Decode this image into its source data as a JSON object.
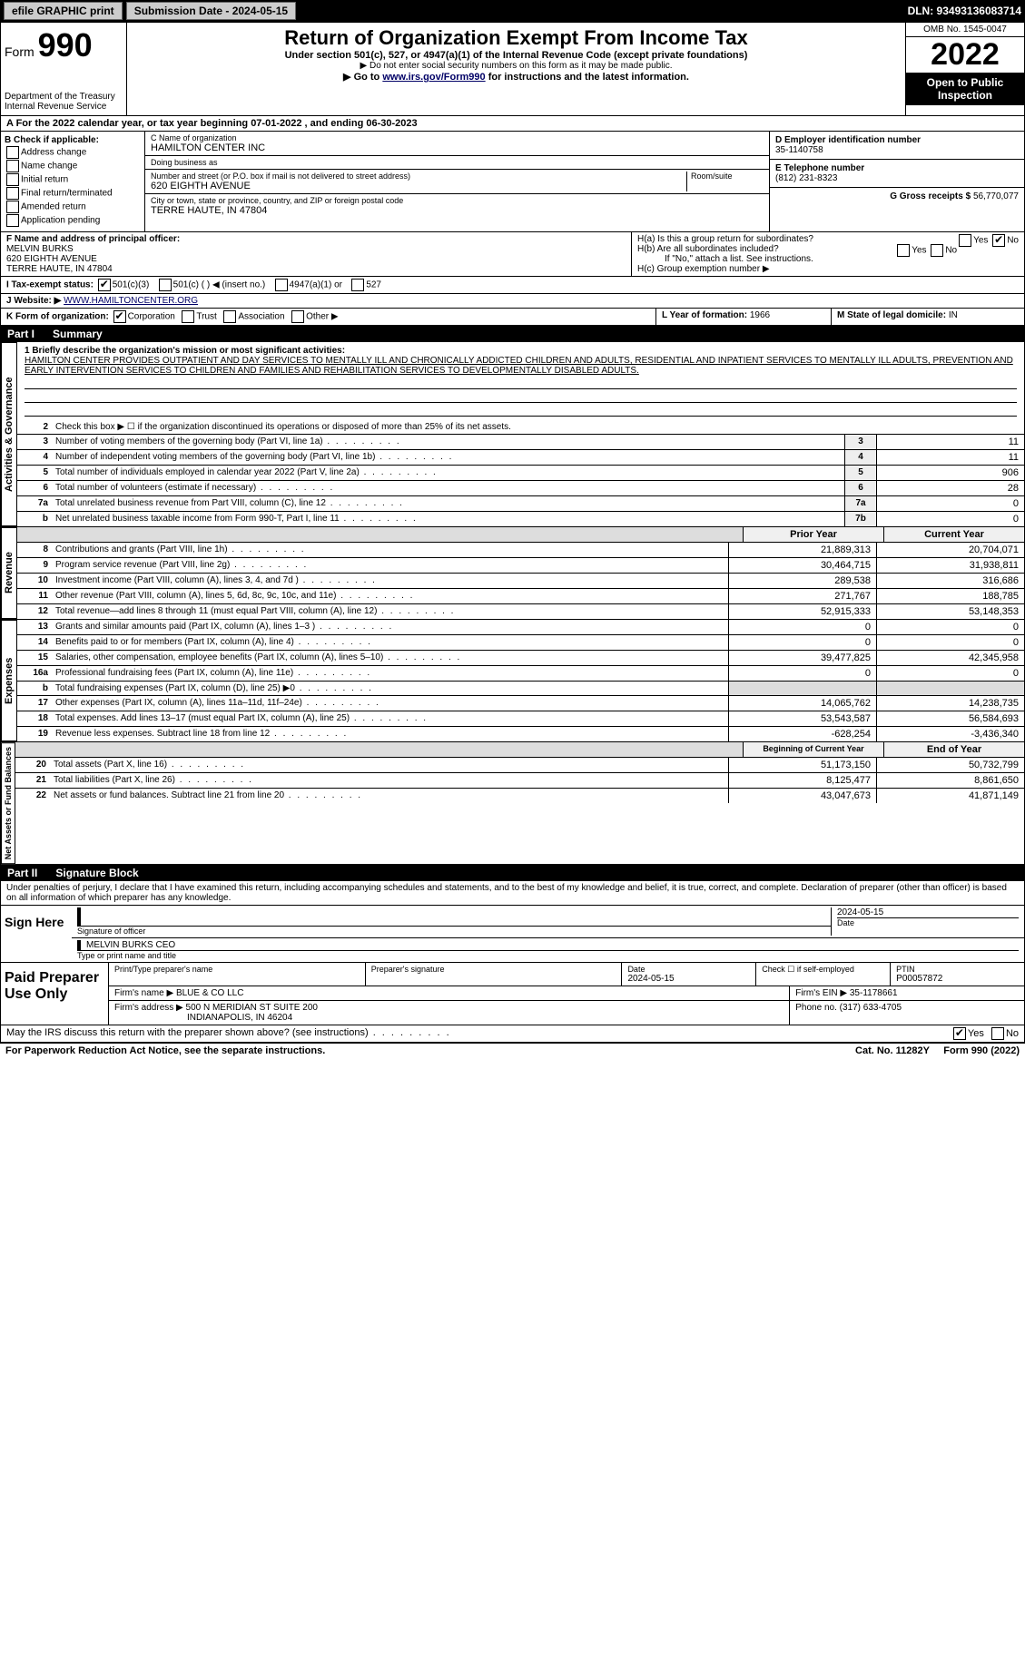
{
  "topbar": {
    "efile": "efile GRAPHIC print",
    "submission_label": "Submission Date - 2024-05-15",
    "dln": "DLN: 93493136083714"
  },
  "header": {
    "form_word": "Form",
    "form_num": "990",
    "dept": "Department of the Treasury\nInternal Revenue Service",
    "title": "Return of Organization Exempt From Income Tax",
    "sub1": "Under section 501(c), 527, or 4947(a)(1) of the Internal Revenue Code (except private foundations)",
    "sub2": "▶ Do not enter social security numbers on this form as it may be made public.",
    "sub3_pre": "▶ Go to ",
    "sub3_link": "www.irs.gov/Form990",
    "sub3_post": " for instructions and the latest information.",
    "omb": "OMB No. 1545-0047",
    "year": "2022",
    "open": "Open to Public Inspection"
  },
  "line_a": "A For the 2022 calendar year, or tax year beginning 07-01-2022    , and ending 06-30-2023",
  "check_b": {
    "label": "B Check if applicable:",
    "items": [
      "Address change",
      "Name change",
      "Initial return",
      "Final return/terminated",
      "Amended return",
      "Application pending"
    ]
  },
  "entity": {
    "c_label": "C Name of organization",
    "name": "HAMILTON CENTER INC",
    "dba_label": "Doing business as",
    "dba": "",
    "addr_label": "Number and street (or P.O. box if mail is not delivered to street address)",
    "room_label": "Room/suite",
    "addr": "620 EIGHTH AVENUE",
    "city_label": "City or town, state or province, country, and ZIP or foreign postal code",
    "city": "TERRE HAUTE, IN  47804",
    "d_label": "D Employer identification number",
    "ein": "35-1140758",
    "e_label": "E Telephone number",
    "phone": "(812) 231-8323",
    "g_label": "G Gross receipts $",
    "g_val": "56,770,077"
  },
  "officer": {
    "f_label": "F Name and address of principal officer:",
    "name": "MELVIN BURKS",
    "addr": "620 EIGHTH AVENUE",
    "city": "TERRE HAUTE, IN  47804"
  },
  "h": {
    "ha_label": "H(a)  Is this a group return for subordinates?",
    "hb_label": "H(b)  Are all subordinates included?",
    "hb_note": "If \"No,\" attach a list. See instructions.",
    "hc_label": "H(c)  Group exemption number ▶"
  },
  "tax_status": {
    "i_label": "I  Tax-exempt status:",
    "opts": [
      "501(c)(3)",
      "501(c) (  ) ◀ (insert no.)",
      "4947(a)(1) or",
      "527"
    ]
  },
  "website": {
    "j_label": "J Website: ▶",
    "url": "WWW.HAMILTONCENTER.ORG"
  },
  "k": {
    "label": "K Form of organization:",
    "opts": [
      "Corporation",
      "Trust",
      "Association",
      "Other ▶"
    ]
  },
  "l": {
    "label": "L Year of formation:",
    "val": "1966"
  },
  "m": {
    "label": "M State of legal domicile:",
    "val": "IN"
  },
  "part1": {
    "num": "Part I",
    "title": "Summary"
  },
  "mission": {
    "label": "1  Briefly describe the organization's mission or most significant activities:",
    "text": "HAMILTON CENTER PROVIDES OUTPATIENT AND DAY SERVICES TO MENTALLY ILL AND CHRONICALLY ADDICTED CHILDREN AND ADULTS, RESIDENTIAL AND INPATIENT SERVICES TO MENTALLY ILL ADULTS, PREVENTION AND EARLY INTERVENTION SERVICES TO CHILDREN AND FAMILIES AND REHABILITATION SERVICES TO DEVELOPMENTALLY DISABLED ADULTS."
  },
  "gov_section": {
    "tab": "Activities & Governance",
    "line2": "Check this box ▶ ☐ if the organization discontinued its operations or disposed of more than 25% of its net assets.",
    "rows": [
      {
        "n": "3",
        "d": "Number of voting members of the governing body (Part VI, line 1a)",
        "box": "3",
        "v": "11"
      },
      {
        "n": "4",
        "d": "Number of independent voting members of the governing body (Part VI, line 1b)",
        "box": "4",
        "v": "11"
      },
      {
        "n": "5",
        "d": "Total number of individuals employed in calendar year 2022 (Part V, line 2a)",
        "box": "5",
        "v": "906"
      },
      {
        "n": "6",
        "d": "Total number of volunteers (estimate if necessary)",
        "box": "6",
        "v": "28"
      },
      {
        "n": "7a",
        "d": "Total unrelated business revenue from Part VIII, column (C), line 12",
        "box": "7a",
        "v": "0"
      },
      {
        "n": "b",
        "d": "Net unrelated business taxable income from Form 990-T, Part I, line 11",
        "box": "7b",
        "v": "0"
      }
    ]
  },
  "rev_section": {
    "tab": "Revenue",
    "hdr_prior": "Prior Year",
    "hdr_curr": "Current Year",
    "rows": [
      {
        "n": "8",
        "d": "Contributions and grants (Part VIII, line 1h)",
        "p": "21,889,313",
        "c": "20,704,071"
      },
      {
        "n": "9",
        "d": "Program service revenue (Part VIII, line 2g)",
        "p": "30,464,715",
        "c": "31,938,811"
      },
      {
        "n": "10",
        "d": "Investment income (Part VIII, column (A), lines 3, 4, and 7d )",
        "p": "289,538",
        "c": "316,686"
      },
      {
        "n": "11",
        "d": "Other revenue (Part VIII, column (A), lines 5, 6d, 8c, 9c, 10c, and 11e)",
        "p": "271,767",
        "c": "188,785"
      },
      {
        "n": "12",
        "d": "Total revenue—add lines 8 through 11 (must equal Part VIII, column (A), line 12)",
        "p": "52,915,333",
        "c": "53,148,353"
      }
    ]
  },
  "exp_section": {
    "tab": "Expenses",
    "rows": [
      {
        "n": "13",
        "d": "Grants and similar amounts paid (Part IX, column (A), lines 1–3 )",
        "p": "0",
        "c": "0"
      },
      {
        "n": "14",
        "d": "Benefits paid to or for members (Part IX, column (A), line 4)",
        "p": "0",
        "c": "0"
      },
      {
        "n": "15",
        "d": "Salaries, other compensation, employee benefits (Part IX, column (A), lines 5–10)",
        "p": "39,477,825",
        "c": "42,345,958"
      },
      {
        "n": "16a",
        "d": "Professional fundraising fees (Part IX, column (A), line 11e)",
        "p": "0",
        "c": "0"
      },
      {
        "n": "b",
        "d": "Total fundraising expenses (Part IX, column (D), line 25) ▶0",
        "p": "",
        "c": ""
      },
      {
        "n": "17",
        "d": "Other expenses (Part IX, column (A), lines 11a–11d, 11f–24e)",
        "p": "14,065,762",
        "c": "14,238,735"
      },
      {
        "n": "18",
        "d": "Total expenses. Add lines 13–17 (must equal Part IX, column (A), line 25)",
        "p": "53,543,587",
        "c": "56,584,693"
      },
      {
        "n": "19",
        "d": "Revenue less expenses. Subtract line 18 from line 12",
        "p": "-628,254",
        "c": "-3,436,340"
      }
    ]
  },
  "na_section": {
    "tab": "Net Assets or Fund Balances",
    "hdr_prior": "Beginning of Current Year",
    "hdr_curr": "End of Year",
    "rows": [
      {
        "n": "20",
        "d": "Total assets (Part X, line 16)",
        "p": "51,173,150",
        "c": "50,732,799"
      },
      {
        "n": "21",
        "d": "Total liabilities (Part X, line 26)",
        "p": "8,125,477",
        "c": "8,861,650"
      },
      {
        "n": "22",
        "d": "Net assets or fund balances. Subtract line 21 from line 20",
        "p": "43,047,673",
        "c": "41,871,149"
      }
    ]
  },
  "part2": {
    "num": "Part II",
    "title": "Signature Block"
  },
  "penalties": "Under penalties of perjury, I declare that I have examined this return, including accompanying schedules and statements, and to the best of my knowledge and belief, it is true, correct, and complete. Declaration of preparer (other than officer) is based on all information of which preparer has any knowledge.",
  "sign": {
    "here": "Sign Here",
    "sig_officer": "Signature of officer",
    "date_label": "Date",
    "date": "2024-05-15",
    "name": "MELVIN BURKS CEO",
    "name_label": "Type or print name and title"
  },
  "preparer": {
    "label": "Paid Preparer Use Only",
    "print_label": "Print/Type preparer's name",
    "sig_label": "Preparer's signature",
    "date_label": "Date",
    "date": "2024-05-15",
    "check_label": "Check ☐ if self-employed",
    "ptin_label": "PTIN",
    "ptin": "P00057872",
    "firm_name_label": "Firm's name   ▶",
    "firm_name": "BLUE & CO LLC",
    "firm_ein_label": "Firm's EIN ▶",
    "firm_ein": "35-1178661",
    "firm_addr_label": "Firm's address ▶",
    "firm_addr": "500 N MERIDIAN ST SUITE 200",
    "firm_city": "INDIANAPOLIS, IN  46204",
    "phone_label": "Phone no.",
    "phone": "(317) 633-4705"
  },
  "irs_discuss": "May the IRS discuss this return with the preparer shown above? (see instructions)",
  "footer": {
    "left": "For Paperwork Reduction Act Notice, see the separate instructions.",
    "cat": "Cat. No. 11282Y",
    "form": "Form 990 (2022)"
  }
}
